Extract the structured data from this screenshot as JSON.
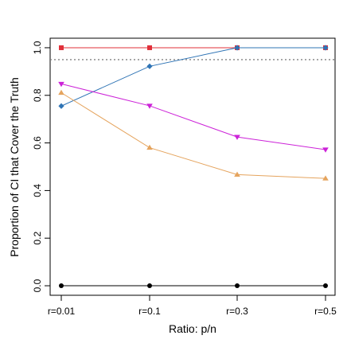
{
  "chart_data": {
    "type": "line",
    "title": "",
    "xlabel": "Ratio: p/n",
    "ylabel": "Proportion of CI that Cover the Truth",
    "categories": [
      "r=0.01",
      "r=0.1",
      "r=0.3",
      "r=0.5"
    ],
    "yticks": [
      "0.0",
      "0.2",
      "0.4",
      "0.6",
      "0.8",
      "1.0"
    ],
    "ylim": [
      -0.04,
      1.04
    ],
    "grid": false,
    "legend": "none",
    "reference_line": {
      "y": 0.95,
      "style": "dotted",
      "color": "#808080"
    },
    "series": [
      {
        "color": "#E0303A",
        "marker": "square",
        "values": [
          1.0,
          1.0,
          1.0,
          1.0
        ]
      },
      {
        "color": "#2F74B5",
        "marker": "diamond",
        "values": [
          0.755,
          0.922,
          1.0,
          1.0
        ]
      },
      {
        "color": "#CC22D8",
        "marker": "triangle-down",
        "values": [
          0.848,
          0.756,
          0.625,
          0.572
        ]
      },
      {
        "color": "#E5A45E",
        "marker": "triangle-up",
        "values": [
          0.811,
          0.58,
          0.467,
          0.451
        ]
      },
      {
        "color": "#000000",
        "marker": "circle",
        "values": [
          0.0,
          0.0,
          0.0,
          0.0
        ]
      }
    ]
  }
}
